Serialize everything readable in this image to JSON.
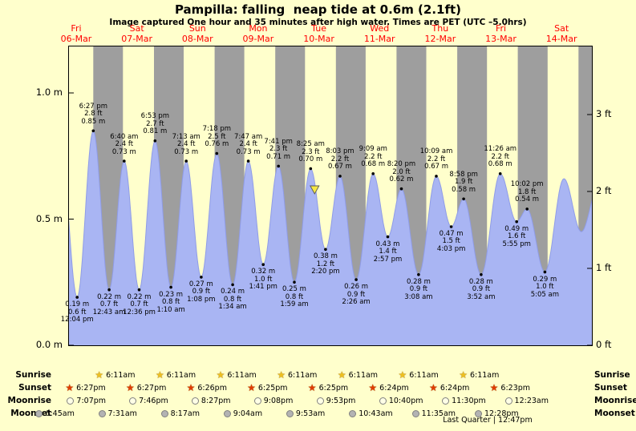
{
  "title": "Pampilla: falling  neap tide at 0.6m (2.1ft)",
  "subtitle": "Image captured One hour and 35 minutes after high water. Times are PET (UTC –5.0hrs)",
  "days": [
    {
      "day": "Fri",
      "date": "06-Mar",
      "t_noon": 12
    },
    {
      "day": "Sat",
      "date": "07-Mar",
      "t_noon": 36
    },
    {
      "day": "Sun",
      "date": "08-Mar",
      "t_noon": 60
    },
    {
      "day": "Mon",
      "date": "09-Mar",
      "t_noon": 84
    },
    {
      "day": "Tue",
      "date": "10-Mar",
      "t_noon": 108
    },
    {
      "day": "Wed",
      "date": "11-Mar",
      "t_noon": 132
    },
    {
      "day": "Thu",
      "date": "12-Mar",
      "t_noon": 156
    },
    {
      "day": "Fri",
      "date": "13-Mar",
      "t_noon": 180
    },
    {
      "day": "Sat",
      "date": "14-Mar",
      "t_noon": 204
    }
  ],
  "axis": {
    "left": [
      {
        "label": "1.0 m",
        "m": 1.0
      },
      {
        "label": "0.5 m",
        "m": 0.5
      },
      {
        "label": "0.0 m",
        "m": 0.0
      }
    ],
    "right": [
      {
        "label": "3 ft",
        "m": 0.9144
      },
      {
        "label": "2 ft",
        "m": 0.6096
      },
      {
        "label": "1 ft",
        "m": 0.3048
      },
      {
        "label": "0 ft",
        "m": 0.0
      }
    ]
  },
  "chart_data": {
    "type": "area",
    "title": "Pampilla: falling  neap tide at 0.6m (2.1ft)",
    "ylabel_left": "meters",
    "ylabel_right": "feet",
    "ylim_m": [
      0.0,
      1.18
    ],
    "x_range_days": "Fri 06-Mar to Sat 14-Mar",
    "current_marker": {
      "t": 106.0,
      "m": 0.6
    },
    "extremes": [
      {
        "kind": "high",
        "t": 5.9,
        "m": 0.73,
        "labeled": false
      },
      {
        "kind": "low",
        "t": 12.067,
        "m": 0.19,
        "time": "12:04 pm",
        "ft": "0.6 ft",
        "m_label": "0.19 m"
      },
      {
        "kind": "high",
        "t": 18.45,
        "m": 0.85,
        "time": "6:27 pm",
        "ft": "2.8 ft",
        "m_label": "0.85 m"
      },
      {
        "kind": "low",
        "t": 24.717,
        "m": 0.22,
        "time": "12:43 am",
        "ft": "0.7 ft",
        "m_label": "0.22 m"
      },
      {
        "kind": "high",
        "t": 30.667,
        "m": 0.73,
        "time": "6:40 am",
        "ft": "2.4 ft",
        "m_label": "0.73 m"
      },
      {
        "kind": "low",
        "t": 36.6,
        "m": 0.22,
        "time": "12:36 pm",
        "ft": "0.7 ft",
        "m_label": "0.22 m"
      },
      {
        "kind": "high",
        "t": 42.883,
        "m": 0.81,
        "time": "6:53 pm",
        "ft": "2.7 ft",
        "m_label": "0.81 m"
      },
      {
        "kind": "low",
        "t": 49.167,
        "m": 0.23,
        "time": "1:10 am",
        "ft": "0.8 ft",
        "m_label": "0.23 m"
      },
      {
        "kind": "high",
        "t": 55.217,
        "m": 0.73,
        "time": "7:13 am",
        "ft": "2.4 ft",
        "m_label": "0.73 m"
      },
      {
        "kind": "low",
        "t": 61.133,
        "m": 0.27,
        "time": "1:08 pm",
        "ft": "0.9 ft",
        "m_label": "0.27 m"
      },
      {
        "kind": "high",
        "t": 67.3,
        "m": 0.76,
        "time": "7:18 pm",
        "ft": "2.5 ft",
        "m_label": "0.76 m"
      },
      {
        "kind": "low",
        "t": 73.567,
        "m": 0.24,
        "time": "1:34 am",
        "ft": "0.8 ft",
        "m_label": "0.24 m"
      },
      {
        "kind": "high",
        "t": 79.783,
        "m": 0.73,
        "time": "7:47 am",
        "ft": "2.4 ft",
        "m_label": "0.73 m"
      },
      {
        "kind": "low",
        "t": 85.683,
        "m": 0.32,
        "time": "1:41 pm",
        "ft": "1.0 ft",
        "m_label": "0.32 m"
      },
      {
        "kind": "high",
        "t": 91.683,
        "m": 0.71,
        "time": "7:41 pm",
        "ft": "2.3 ft",
        "m_label": "0.71 m"
      },
      {
        "kind": "low",
        "t": 97.983,
        "m": 0.25,
        "time": "1:59 am",
        "ft": "0.8 ft",
        "m_label": "0.25 m"
      },
      {
        "kind": "high",
        "t": 104.417,
        "m": 0.7,
        "time": "8:25 am",
        "ft": "2.3 ft",
        "m_label": "0.70 m"
      },
      {
        "kind": "low",
        "t": 110.333,
        "m": 0.38,
        "time": "2:20 pm",
        "ft": "1.2 ft",
        "m_label": "0.38 m"
      },
      {
        "kind": "high",
        "t": 116.05,
        "m": 0.67,
        "time": "8:03 pm",
        "ft": "2.2 ft",
        "m_label": "0.67 m"
      },
      {
        "kind": "low",
        "t": 122.433,
        "m": 0.26,
        "time": "2:26 am",
        "ft": "0.9 ft",
        "m_label": "0.26 m"
      },
      {
        "kind": "high",
        "t": 129.15,
        "m": 0.68,
        "time": "9:09 am",
        "ft": "2.2 ft",
        "m_label": "0.68 m"
      },
      {
        "kind": "low",
        "t": 134.95,
        "m": 0.43,
        "time": "2:57 pm",
        "ft": "1.4 ft",
        "m_label": "0.43 m"
      },
      {
        "kind": "high",
        "t": 140.333,
        "m": 0.62,
        "time": "8:20 pm",
        "ft": "2.0 ft",
        "m_label": "0.62 m"
      },
      {
        "kind": "low",
        "t": 147.133,
        "m": 0.28,
        "time": "3:08 am",
        "ft": "0.9 ft",
        "m_label": "0.28 m"
      },
      {
        "kind": "high",
        "t": 154.15,
        "m": 0.67,
        "time": "10:09 am",
        "ft": "2.2 ft",
        "m_label": "0.67 m"
      },
      {
        "kind": "low",
        "t": 160.05,
        "m": 0.47,
        "time": "4:03 pm",
        "ft": "1.5 ft",
        "m_label": "0.47 m"
      },
      {
        "kind": "high",
        "t": 164.967,
        "m": 0.58,
        "time": "8:58 pm",
        "ft": "1.9 ft",
        "m_label": "0.58 m"
      },
      {
        "kind": "low",
        "t": 171.867,
        "m": 0.28,
        "time": "3:52 am",
        "ft": "0.9 ft",
        "m_label": "0.28 m"
      },
      {
        "kind": "high",
        "t": 179.433,
        "m": 0.68,
        "time": "11:26 am",
        "ft": "2.2 ft",
        "m_label": "0.68 m"
      },
      {
        "kind": "low",
        "t": 185.917,
        "m": 0.49,
        "time": "5:55 pm",
        "ft": "1.6 ft",
        "m_label": "0.49 m"
      },
      {
        "kind": "high",
        "t": 190.033,
        "m": 0.54,
        "time": "10:02 pm",
        "ft": "1.8 ft",
        "m_label": "0.54 m"
      },
      {
        "kind": "low",
        "t": 197.083,
        "m": 0.29,
        "time": "5:05 am",
        "ft": "1.0 ft",
        "m_label": "0.29 m"
      },
      {
        "kind": "high",
        "t": 204.6,
        "m": 0.66,
        "labeled": false
      },
      {
        "kind": "low",
        "t": 211.5,
        "m": 0.45,
        "labeled": false
      },
      {
        "kind": "high",
        "t": 218.0,
        "m": 0.62,
        "labeled": false
      }
    ],
    "night_bands_t": [
      [
        18.45,
        30.183
      ],
      [
        42.45,
        54.183
      ],
      [
        66.433,
        78.183
      ],
      [
        90.417,
        102.183
      ],
      [
        114.417,
        126.183
      ],
      [
        138.4,
        150.183
      ],
      [
        162.4,
        174.183
      ],
      [
        186.383,
        198.183
      ],
      [
        210.383,
        215.7
      ]
    ]
  },
  "astro": {
    "rows": [
      {
        "name": "sunrise",
        "label": "Sunrise",
        "icon": "sunrise-star-icon",
        "entries": [
          {
            "time": "6:11am",
            "t": 30.183
          },
          {
            "time": "6:11am",
            "t": 54.183
          },
          {
            "time": "6:11am",
            "t": 78.183
          },
          {
            "time": "6:11am",
            "t": 102.183
          },
          {
            "time": "6:11am",
            "t": 126.183
          },
          {
            "time": "6:11am",
            "t": 150.183
          },
          {
            "time": "6:11am",
            "t": 174.183
          }
        ]
      },
      {
        "name": "sunset",
        "label": "Sunset",
        "icon": "sunset-star-icon",
        "entries": [
          {
            "time": "6:27pm",
            "t": 18.45
          },
          {
            "time": "6:27pm",
            "t": 42.45
          },
          {
            "time": "6:26pm",
            "t": 66.433
          },
          {
            "time": "6:25pm",
            "t": 90.417
          },
          {
            "time": "6:25pm",
            "t": 114.417
          },
          {
            "time": "6:24pm",
            "t": 138.4
          },
          {
            "time": "6:24pm",
            "t": 162.4
          },
          {
            "time": "6:23pm",
            "t": 186.383
          }
        ]
      },
      {
        "name": "moonrise",
        "label": "Moonrise",
        "icon": "moonrise-disc-icon",
        "entries": [
          {
            "time": "7:07pm",
            "t": 19.117
          },
          {
            "time": "7:46pm",
            "t": 43.767
          },
          {
            "time": "8:27pm",
            "t": 68.45
          },
          {
            "time": "9:08pm",
            "t": 93.133
          },
          {
            "time": "9:53pm",
            "t": 117.883
          },
          {
            "time": "10:40pm",
            "t": 142.667
          },
          {
            "time": "11:30pm",
            "t": 167.5
          },
          {
            "time": "12:23am",
            "t": 192.383
          }
        ]
      },
      {
        "name": "moonset",
        "label": "Moonset",
        "icon": "moonset-disc-icon",
        "entries": [
          {
            "time": "6:45am",
            "t": 6.75
          },
          {
            "time": "7:31am",
            "t": 31.517
          },
          {
            "time": "8:17am",
            "t": 56.283
          },
          {
            "time": "9:04am",
            "t": 81.067
          },
          {
            "time": "9:53am",
            "t": 105.883
          },
          {
            "time": "10:43am",
            "t": 130.717
          },
          {
            "time": "11:35am",
            "t": 155.583
          },
          {
            "time": "12:28pm",
            "t": 180.467
          }
        ]
      }
    ],
    "moon_phase": "Last Quarter | 12:47pm"
  },
  "colors": {
    "background": "#ffffcc",
    "night_band": "#9e9e9e",
    "tide_fill": "#a9b5f3",
    "tide_stroke": "#8f9ce8",
    "day_label": "#ff0000",
    "sunrise_star": "#edc020",
    "sunset_star": "#e03c00",
    "moonrise_disc": "#ffffe6",
    "moonset_disc": "#b3b3b3",
    "marker": "#f7e843"
  }
}
